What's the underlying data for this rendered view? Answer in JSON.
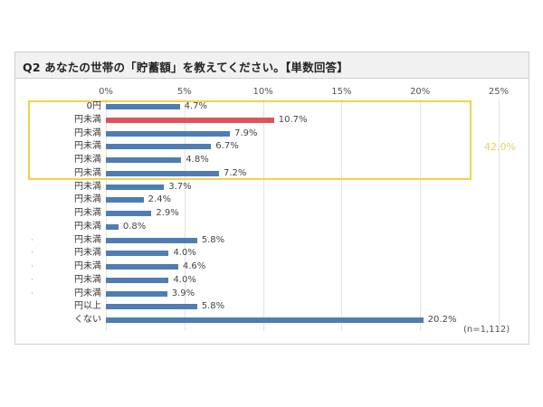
{
  "header": {
    "title": "Q2 あなたの世帯の「貯蓄額」を教えてください。【単数回答】"
  },
  "chart_data": {
    "type": "bar",
    "orientation": "horizontal",
    "title": "Q2 あなたの世帯の「貯蓄額」を教えてください。【単数回答】",
    "xlabel": "",
    "ylabel": "",
    "xlim": [
      0,
      25
    ],
    "ticks": [
      "0%",
      "5%",
      "10%",
      "15%",
      "20%",
      "25%"
    ],
    "grid": true,
    "categories": [
      "0円",
      "円未満",
      "円未満",
      "円未満",
      "円未満",
      "円未満",
      "円未満",
      "円未満",
      "円未満",
      "円未満",
      "円未満",
      "円未満",
      "円未満",
      "円未満",
      "円未満",
      "円以上",
      "くない"
    ],
    "values": [
      4.7,
      10.7,
      7.9,
      6.7,
      4.8,
      7.2,
      3.7,
      2.4,
      2.9,
      0.8,
      5.8,
      4.0,
      4.6,
      4.0,
      3.9,
      5.8,
      20.2
    ],
    "value_labels": [
      "4.7%",
      "10.7%",
      "7.9%",
      "6.7%",
      "4.8%",
      "7.2%",
      "3.7%",
      "2.4%",
      "2.9%",
      "0.8%",
      "5.8%",
      "4.0%",
      "4.6%",
      "4.0%",
      "3.9%",
      "5.8%",
      "20.2%"
    ],
    "highlighted_index": 1,
    "annotation": {
      "highlight_group_rows": [
        0,
        5
      ],
      "highlight_group_total": "42.0%"
    },
    "sample_size": "(n=1,112)",
    "colors": {
      "bar": "#4f7db3",
      "highlight_bar": "#e0535a",
      "highlight_box": "#f0d24a",
      "highlight_total_text": "#e8cf6a"
    }
  }
}
